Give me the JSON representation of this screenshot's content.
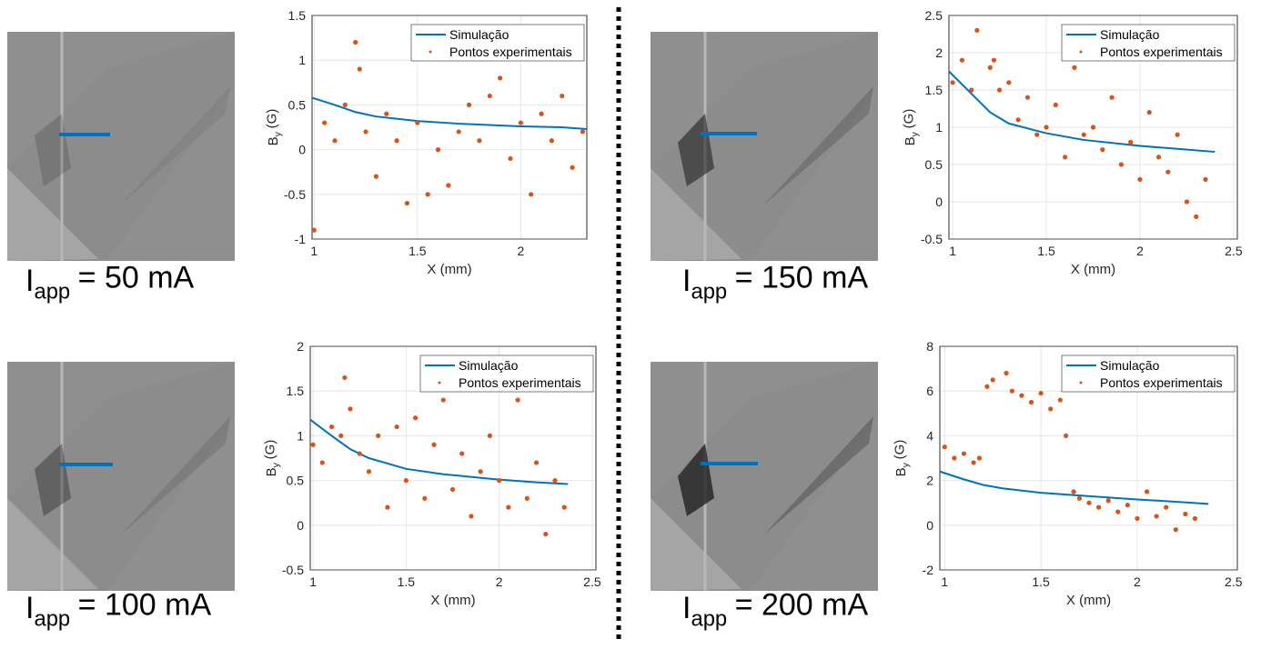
{
  "chart_data": [
    {
      "type": "scatter-line",
      "caption": {
        "main": "I",
        "sub": "app",
        "rest": "= 50 mA"
      },
      "xlabel": "X (mm)",
      "ylabel": {
        "main": "B",
        "sub": "y",
        "rest": "(G)"
      },
      "xlim": [
        0.99,
        2.32
      ],
      "xticks": [
        1,
        1.5,
        2
      ],
      "ylim": [
        -1,
        1.5
      ],
      "yticks": [
        -1,
        -0.5,
        0,
        0.5,
        1,
        1.5
      ],
      "grid": true,
      "legend": "top-right",
      "series": [
        {
          "name": "Simulação",
          "color": "#0072bd",
          "kind": "line",
          "x": [
            0.99,
            1.1,
            1.2,
            1.3,
            1.5,
            1.7,
            2.0,
            2.2,
            2.32
          ],
          "values": [
            0.58,
            0.5,
            0.42,
            0.37,
            0.32,
            0.29,
            0.26,
            0.25,
            0.23
          ]
        },
        {
          "name": "Pontos experimentais",
          "color": "#d95319",
          "kind": "points",
          "x": [
            1.0,
            1.05,
            1.1,
            1.15,
            1.2,
            1.22,
            1.25,
            1.3,
            1.35,
            1.4,
            1.45,
            1.5,
            1.55,
            1.6,
            1.65,
            1.7,
            1.75,
            1.8,
            1.85,
            1.9,
            1.95,
            2.0,
            2.05,
            2.1,
            2.15,
            2.2,
            2.25,
            2.3
          ],
          "values": [
            -0.9,
            0.3,
            0.1,
            0.5,
            1.2,
            0.9,
            0.2,
            -0.3,
            0.4,
            0.1,
            -0.6,
            0.3,
            -0.5,
            0.0,
            -0.4,
            0.2,
            0.5,
            0.1,
            0.6,
            0.8,
            -0.1,
            0.3,
            -0.5,
            0.4,
            0.1,
            0.6,
            -0.2,
            0.2
          ]
        }
      ]
    },
    {
      "type": "scatter-line",
      "caption": {
        "main": "I",
        "sub": "app",
        "rest": "= 150 mA"
      },
      "xlabel": "X (mm)",
      "ylabel": {
        "main": "B",
        "sub": "y",
        "rest": "(G)"
      },
      "xlim": [
        0.98,
        2.52
      ],
      "xticks": [
        1,
        1.5,
        2,
        2.5
      ],
      "ylim": [
        -0.5,
        2.5
      ],
      "yticks": [
        -0.5,
        0,
        0.5,
        1,
        1.5,
        2,
        2.5
      ],
      "grid": true,
      "legend": "top-right",
      "series": [
        {
          "name": "Simulação",
          "color": "#0072bd",
          "kind": "line",
          "x": [
            0.98,
            1.1,
            1.2,
            1.3,
            1.5,
            1.7,
            2.0,
            2.2,
            2.4
          ],
          "values": [
            1.75,
            1.45,
            1.2,
            1.05,
            0.92,
            0.83,
            0.75,
            0.71,
            0.67
          ]
        },
        {
          "name": "Pontos experimentais",
          "color": "#d95319",
          "kind": "points",
          "x": [
            1.0,
            1.05,
            1.1,
            1.13,
            1.2,
            1.22,
            1.25,
            1.3,
            1.35,
            1.4,
            1.45,
            1.5,
            1.55,
            1.6,
            1.65,
            1.7,
            1.75,
            1.8,
            1.85,
            1.9,
            1.95,
            2.0,
            2.05,
            2.1,
            2.15,
            2.2,
            2.25,
            2.3,
            2.35
          ],
          "values": [
            1.6,
            1.9,
            1.5,
            2.3,
            1.8,
            1.9,
            1.5,
            1.6,
            1.1,
            1.4,
            0.9,
            1.0,
            1.3,
            0.6,
            1.8,
            0.9,
            1.0,
            0.7,
            1.4,
            0.5,
            0.8,
            0.3,
            1.2,
            0.6,
            0.4,
            0.9,
            0.0,
            -0.2,
            0.3
          ]
        }
      ]
    },
    {
      "type": "scatter-line",
      "caption": {
        "main": "I",
        "sub": "app",
        "rest": "= 100 mA"
      },
      "xlabel": "X (mm)",
      "ylabel": {
        "main": "B",
        "sub": "y",
        "rest": "(G)"
      },
      "xlim": [
        0.985,
        2.52
      ],
      "xticks": [
        1,
        1.5,
        2,
        2.5
      ],
      "ylim": [
        -0.5,
        2
      ],
      "yticks": [
        -0.5,
        0,
        0.5,
        1,
        1.5,
        2
      ],
      "grid": true,
      "legend": "top-right",
      "series": [
        {
          "name": "Simulação",
          "color": "#0072bd",
          "kind": "line",
          "x": [
            0.985,
            1.1,
            1.2,
            1.3,
            1.5,
            1.7,
            2.0,
            2.2,
            2.37
          ],
          "values": [
            1.18,
            1.0,
            0.85,
            0.75,
            0.63,
            0.57,
            0.51,
            0.48,
            0.46
          ]
        },
        {
          "name": "Pontos experimentais",
          "color": "#d95319",
          "kind": "points",
          "x": [
            1.0,
            1.05,
            1.1,
            1.15,
            1.17,
            1.2,
            1.25,
            1.3,
            1.35,
            1.4,
            1.45,
            1.5,
            1.55,
            1.6,
            1.65,
            1.7,
            1.75,
            1.8,
            1.85,
            1.9,
            1.95,
            2.0,
            2.05,
            2.1,
            2.15,
            2.2,
            2.25,
            2.3,
            2.35
          ],
          "values": [
            0.9,
            0.7,
            1.1,
            1.0,
            1.65,
            1.3,
            0.8,
            0.6,
            1.0,
            0.2,
            1.1,
            0.5,
            1.2,
            0.3,
            0.9,
            1.4,
            0.4,
            0.8,
            0.1,
            0.6,
            1.0,
            0.5,
            0.2,
            1.4,
            0.3,
            0.7,
            -0.1,
            0.5,
            0.2
          ]
        }
      ]
    },
    {
      "type": "scatter-line",
      "caption": {
        "main": "I",
        "sub": "app",
        "rest": "= 200 mA"
      },
      "xlabel": "X (mm)",
      "ylabel": {
        "main": "B",
        "sub": "y",
        "rest": "(G)"
      },
      "xlim": [
        0.975,
        2.52
      ],
      "xticks": [
        1,
        1.5,
        2,
        2.5
      ],
      "ylim": [
        -2,
        8
      ],
      "yticks": [
        -2,
        0,
        2,
        4,
        6,
        8
      ],
      "grid": true,
      "legend": "top-right",
      "series": [
        {
          "name": "Simulação",
          "color": "#0072bd",
          "kind": "line",
          "x": [
            0.975,
            1.1,
            1.2,
            1.3,
            1.5,
            1.7,
            2.0,
            2.2,
            2.37
          ],
          "values": [
            2.4,
            2.05,
            1.8,
            1.65,
            1.45,
            1.33,
            1.15,
            1.05,
            0.95
          ]
        },
        {
          "name": "Pontos experimentais",
          "color": "#d95319",
          "kind": "points",
          "x": [
            1.0,
            1.05,
            1.1,
            1.15,
            1.18,
            1.22,
            1.25,
            1.32,
            1.35,
            1.4,
            1.45,
            1.5,
            1.55,
            1.6,
            1.63,
            1.67,
            1.7,
            1.75,
            1.8,
            1.85,
            1.9,
            1.95,
            2.0,
            2.05,
            2.1,
            2.15,
            2.2,
            2.25,
            2.3
          ],
          "values": [
            3.5,
            3.0,
            3.2,
            2.8,
            3.0,
            6.2,
            6.5,
            6.8,
            6.0,
            5.8,
            5.5,
            5.9,
            5.2,
            5.6,
            4.0,
            1.5,
            1.2,
            1.0,
            0.8,
            1.1,
            0.6,
            0.9,
            0.3,
            1.5,
            0.4,
            0.8,
            -0.2,
            0.5,
            0.3
          ]
        }
      ]
    }
  ]
}
